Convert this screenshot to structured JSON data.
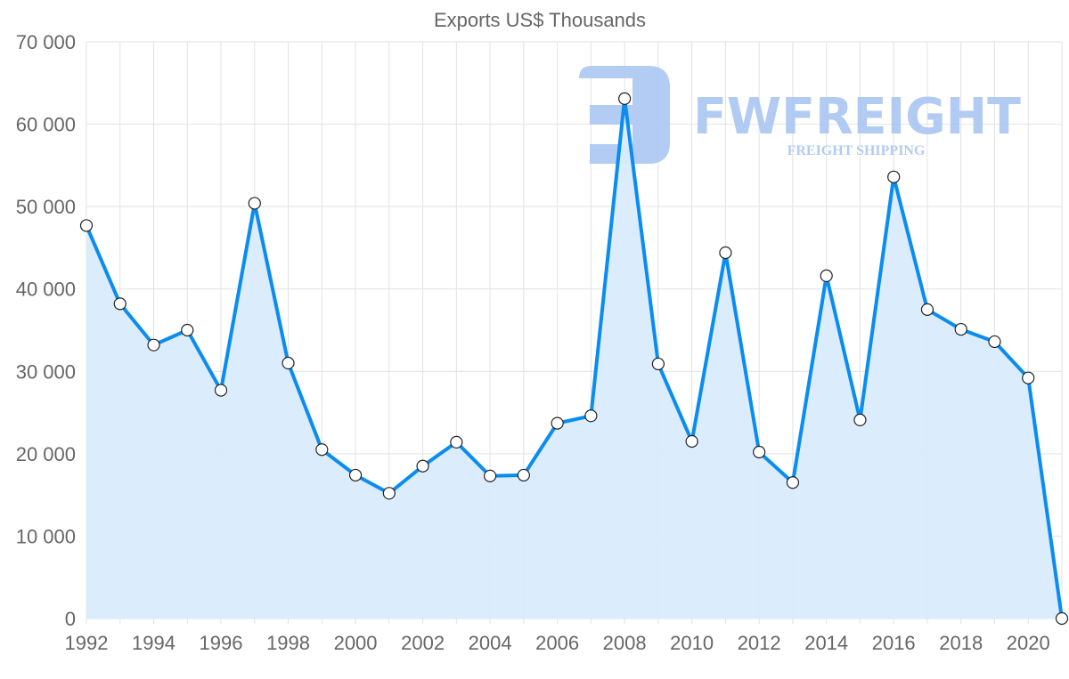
{
  "watermark": {
    "brand": "FWFREIGHT",
    "tagline": "FREIGHT SHIPPING"
  },
  "colors": {
    "line": "#0a8cf0",
    "fill": "#d9ecfc",
    "grid": "#e2e2e2",
    "logo": "#aac6f2"
  },
  "chart_data": {
    "type": "line",
    "title": "Exports US$ Thousands",
    "xlabel": "",
    "ylabel": "",
    "ylim": [
      0,
      70000
    ],
    "yticks": [
      0,
      10000,
      20000,
      30000,
      40000,
      50000,
      60000,
      70000
    ],
    "ytick_labels": [
      "0",
      "10 000",
      "20 000",
      "30 000",
      "40 000",
      "50 000",
      "60 000",
      "70 000"
    ],
    "xticks": [
      "1992",
      "1994",
      "1996",
      "1998",
      "2000",
      "2002",
      "2004",
      "2006",
      "2008",
      "2010",
      "2012",
      "2014",
      "2016",
      "2018",
      "2020"
    ],
    "grid": true,
    "area_fill": true,
    "x": [
      1992,
      1993,
      1994,
      1995,
      1996,
      1997,
      1998,
      1999,
      2000,
      2001,
      2002,
      2003,
      2004,
      2005,
      2006,
      2007,
      2008,
      2009,
      2010,
      2011,
      2012,
      2013,
      2014,
      2015,
      2016,
      2017,
      2018,
      2019,
      2020,
      2021
    ],
    "series": [
      {
        "name": "Exports US$ Thousands",
        "values": [
          47700,
          38200,
          33200,
          35000,
          27700,
          50400,
          31000,
          20500,
          17400,
          15200,
          18500,
          21400,
          17300,
          17400,
          23700,
          24600,
          63100,
          30900,
          21500,
          44400,
          20200,
          16500,
          41600,
          24100,
          53600,
          37500,
          35100,
          33600,
          29200,
          0
        ]
      }
    ]
  }
}
